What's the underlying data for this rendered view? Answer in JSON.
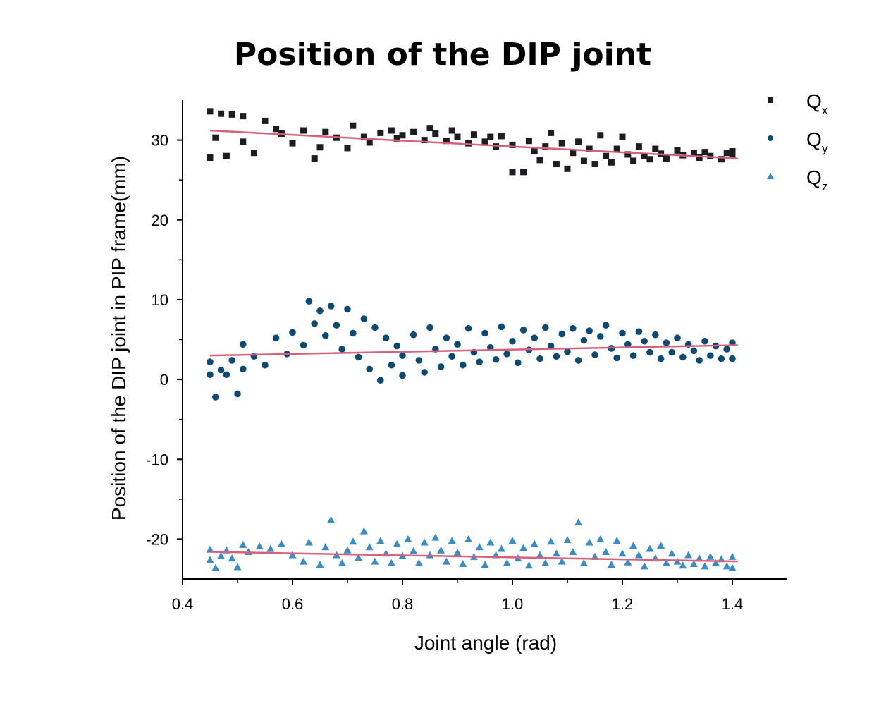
{
  "chart_data": {
    "type": "scatter",
    "title": "Position of the DIP joint",
    "xlabel": "Joint angle (rad)",
    "ylabel": "Position of the DIP joint in PIP frame(mm)",
    "xlim": [
      0.4,
      1.5
    ],
    "ylim": [
      -25,
      35
    ],
    "xticks": [
      "0.4",
      "0.6",
      "0.8",
      "1.0",
      "1.2",
      "1.4"
    ],
    "yticks": [
      "-20",
      "-10",
      "0",
      "10",
      "20",
      "30"
    ],
    "legend_position": "top-right",
    "series": [
      {
        "name": "Q",
        "subscript": "x",
        "marker": "square",
        "color": "#1b1d22",
        "fit_line": {
          "x": [
            0.45,
            1.41
          ],
          "y": [
            31.2,
            27.7
          ],
          "color": "#d9607a"
        },
        "points": [
          [
            0.45,
            33.6
          ],
          [
            0.47,
            33.3
          ],
          [
            0.49,
            33.2
          ],
          [
            0.51,
            33.0
          ],
          [
            0.55,
            32.4
          ],
          [
            0.46,
            30.3
          ],
          [
            0.45,
            27.8
          ],
          [
            0.48,
            28.0
          ],
          [
            0.51,
            29.8
          ],
          [
            0.53,
            28.4
          ],
          [
            0.57,
            31.4
          ],
          [
            0.58,
            30.8
          ],
          [
            0.6,
            29.6
          ],
          [
            0.62,
            31.2
          ],
          [
            0.64,
            27.7
          ],
          [
            0.65,
            29.1
          ],
          [
            0.66,
            31.0
          ],
          [
            0.68,
            30.3
          ],
          [
            0.7,
            29.0
          ],
          [
            0.71,
            31.8
          ],
          [
            0.73,
            30.4
          ],
          [
            0.74,
            29.7
          ],
          [
            0.76,
            30.9
          ],
          [
            0.78,
            31.2
          ],
          [
            0.79,
            30.2
          ],
          [
            0.8,
            30.6
          ],
          [
            0.82,
            31.0
          ],
          [
            0.84,
            30.0
          ],
          [
            0.85,
            31.5
          ],
          [
            0.86,
            30.8
          ],
          [
            0.88,
            29.9
          ],
          [
            0.89,
            31.2
          ],
          [
            0.9,
            30.4
          ],
          [
            0.92,
            29.6
          ],
          [
            0.93,
            30.7
          ],
          [
            0.95,
            29.8
          ],
          [
            0.96,
            30.4
          ],
          [
            0.97,
            29.2
          ],
          [
            0.98,
            30.5
          ],
          [
            1.0,
            29.4
          ],
          [
            1.0,
            26.0
          ],
          [
            1.02,
            26.0
          ],
          [
            1.03,
            29.9
          ],
          [
            1.04,
            28.6
          ],
          [
            1.05,
            27.5
          ],
          [
            1.06,
            29.2
          ],
          [
            1.07,
            30.9
          ],
          [
            1.08,
            27.0
          ],
          [
            1.09,
            29.6
          ],
          [
            1.1,
            26.4
          ],
          [
            1.11,
            28.4
          ],
          [
            1.12,
            29.8
          ],
          [
            1.13,
            27.4
          ],
          [
            1.14,
            28.9
          ],
          [
            1.15,
            27.0
          ],
          [
            1.16,
            30.6
          ],
          [
            1.17,
            28.0
          ],
          [
            1.18,
            27.2
          ],
          [
            1.19,
            28.9
          ],
          [
            1.2,
            30.4
          ],
          [
            1.21,
            28.2
          ],
          [
            1.22,
            27.4
          ],
          [
            1.23,
            29.2
          ],
          [
            1.24,
            28.0
          ],
          [
            1.25,
            27.6
          ],
          [
            1.26,
            28.9
          ],
          [
            1.27,
            28.3
          ],
          [
            1.28,
            27.7
          ],
          [
            1.3,
            28.7
          ],
          [
            1.31,
            28.1
          ],
          [
            1.33,
            28.4
          ],
          [
            1.34,
            27.8
          ],
          [
            1.35,
            28.5
          ],
          [
            1.36,
            28.0
          ],
          [
            1.38,
            27.6
          ],
          [
            1.39,
            28.4
          ],
          [
            1.4,
            28.0
          ],
          [
            1.4,
            28.6
          ]
        ]
      },
      {
        "name": "Q",
        "subscript": "y",
        "marker": "circle",
        "color": "#0c4a73",
        "fit_line": {
          "x": [
            0.45,
            1.41
          ],
          "y": [
            3.0,
            4.3
          ],
          "color": "#d9607a"
        },
        "points": [
          [
            0.45,
            2.2
          ],
          [
            0.45,
            0.6
          ],
          [
            0.46,
            -2.2
          ],
          [
            0.47,
            1.2
          ],
          [
            0.48,
            0.6
          ],
          [
            0.49,
            2.4
          ],
          [
            0.5,
            -1.8
          ],
          [
            0.51,
            4.4
          ],
          [
            0.51,
            1.3
          ],
          [
            0.53,
            2.9
          ],
          [
            0.55,
            1.8
          ],
          [
            0.57,
            5.2
          ],
          [
            0.59,
            3.2
          ],
          [
            0.6,
            5.9
          ],
          [
            0.62,
            4.3
          ],
          [
            0.63,
            9.8
          ],
          [
            0.64,
            7.0
          ],
          [
            0.65,
            8.6
          ],
          [
            0.66,
            5.5
          ],
          [
            0.67,
            9.2
          ],
          [
            0.68,
            6.8
          ],
          [
            0.69,
            3.8
          ],
          [
            0.7,
            8.8
          ],
          [
            0.71,
            5.8
          ],
          [
            0.72,
            2.8
          ],
          [
            0.73,
            7.6
          ],
          [
            0.74,
            1.3
          ],
          [
            0.75,
            6.5
          ],
          [
            0.76,
            -0.1
          ],
          [
            0.77,
            5.2
          ],
          [
            0.78,
            1.8
          ],
          [
            0.79,
            4.2
          ],
          [
            0.8,
            3.0
          ],
          [
            0.8,
            0.5
          ],
          [
            0.82,
            5.6
          ],
          [
            0.83,
            2.4
          ],
          [
            0.84,
            0.9
          ],
          [
            0.85,
            6.5
          ],
          [
            0.86,
            3.8
          ],
          [
            0.87,
            1.6
          ],
          [
            0.88,
            5.2
          ],
          [
            0.89,
            2.9
          ],
          [
            0.9,
            4.4
          ],
          [
            0.91,
            1.8
          ],
          [
            0.92,
            6.4
          ],
          [
            0.93,
            3.4
          ],
          [
            0.94,
            2.2
          ],
          [
            0.95,
            5.8
          ],
          [
            0.96,
            4.0
          ],
          [
            0.97,
            2.5
          ],
          [
            0.98,
            6.6
          ],
          [
            0.99,
            3.2
          ],
          [
            1.0,
            4.8
          ],
          [
            1.01,
            2.1
          ],
          [
            1.02,
            6.2
          ],
          [
            1.03,
            3.7
          ],
          [
            1.04,
            5.2
          ],
          [
            1.05,
            2.6
          ],
          [
            1.06,
            6.5
          ],
          [
            1.07,
            4.2
          ],
          [
            1.08,
            2.9
          ],
          [
            1.09,
            5.7
          ],
          [
            1.1,
            3.5
          ],
          [
            1.11,
            6.4
          ],
          [
            1.12,
            2.4
          ],
          [
            1.13,
            4.9
          ],
          [
            1.14,
            6.1
          ],
          [
            1.15,
            3.1
          ],
          [
            1.16,
            5.4
          ],
          [
            1.17,
            6.8
          ],
          [
            1.18,
            3.9
          ],
          [
            1.19,
            2.7
          ],
          [
            1.2,
            5.8
          ],
          [
            1.21,
            4.4
          ],
          [
            1.22,
            3.0
          ],
          [
            1.23,
            6.0
          ],
          [
            1.24,
            4.8
          ],
          [
            1.25,
            3.4
          ],
          [
            1.26,
            5.6
          ],
          [
            1.27,
            2.6
          ],
          [
            1.28,
            4.6
          ],
          [
            1.29,
            3.4
          ],
          [
            1.3,
            5.2
          ],
          [
            1.31,
            2.8
          ],
          [
            1.32,
            4.4
          ],
          [
            1.33,
            3.6
          ],
          [
            1.34,
            2.4
          ],
          [
            1.35,
            4.8
          ],
          [
            1.36,
            3.0
          ],
          [
            1.37,
            4.2
          ],
          [
            1.38,
            2.6
          ],
          [
            1.39,
            3.8
          ],
          [
            1.4,
            4.6
          ],
          [
            1.4,
            2.6
          ]
        ]
      },
      {
        "name": "Q",
        "subscript": "z",
        "marker": "triangle",
        "color": "#3a8cc6",
        "fit_line": {
          "x": [
            0.45,
            1.41
          ],
          "y": [
            -21.6,
            -22.8
          ],
          "color": "#d9607a"
        },
        "points": [
          [
            0.45,
            -21.3
          ],
          [
            0.45,
            -22.6
          ],
          [
            0.46,
            -23.6
          ],
          [
            0.47,
            -22.1
          ],
          [
            0.48,
            -21.4
          ],
          [
            0.49,
            -22.4
          ],
          [
            0.5,
            -23.5
          ],
          [
            0.51,
            -20.7
          ],
          [
            0.52,
            -21.6
          ],
          [
            0.54,
            -20.9
          ],
          [
            0.56,
            -21.2
          ],
          [
            0.58,
            -20.6
          ],
          [
            0.6,
            -22.0
          ],
          [
            0.62,
            -22.8
          ],
          [
            0.63,
            -20.4
          ],
          [
            0.65,
            -23.2
          ],
          [
            0.66,
            -21.0
          ],
          [
            0.67,
            -17.6
          ],
          [
            0.68,
            -22.0
          ],
          [
            0.69,
            -23.0
          ],
          [
            0.7,
            -21.4
          ],
          [
            0.71,
            -20.3
          ],
          [
            0.72,
            -22.3
          ],
          [
            0.73,
            -19.0
          ],
          [
            0.74,
            -21.0
          ],
          [
            0.75,
            -22.8
          ],
          [
            0.76,
            -20.2
          ],
          [
            0.77,
            -21.8
          ],
          [
            0.78,
            -23.0
          ],
          [
            0.79,
            -20.6
          ],
          [
            0.8,
            -22.1
          ],
          [
            0.81,
            -20.0
          ],
          [
            0.82,
            -21.5
          ],
          [
            0.83,
            -23.0
          ],
          [
            0.84,
            -20.4
          ],
          [
            0.85,
            -22.0
          ],
          [
            0.86,
            -19.8
          ],
          [
            0.87,
            -21.4
          ],
          [
            0.88,
            -22.8
          ],
          [
            0.89,
            -20.2
          ],
          [
            0.9,
            -21.7
          ],
          [
            0.91,
            -23.1
          ],
          [
            0.92,
            -20.0
          ],
          [
            0.93,
            -22.2
          ],
          [
            0.94,
            -21.0
          ],
          [
            0.95,
            -23.2
          ],
          [
            0.96,
            -20.4
          ],
          [
            0.97,
            -22.0
          ],
          [
            0.98,
            -21.2
          ],
          [
            0.99,
            -23.0
          ],
          [
            1.0,
            -20.2
          ],
          [
            1.01,
            -22.4
          ],
          [
            1.02,
            -21.1
          ],
          [
            1.03,
            -23.3
          ],
          [
            1.04,
            -20.6
          ],
          [
            1.05,
            -22.0
          ],
          [
            1.06,
            -23.0
          ],
          [
            1.07,
            -20.3
          ],
          [
            1.08,
            -21.8
          ],
          [
            1.09,
            -22.8
          ],
          [
            1.1,
            -20.1
          ],
          [
            1.11,
            -21.6
          ],
          [
            1.12,
            -17.9
          ],
          [
            1.13,
            -23.0
          ],
          [
            1.14,
            -20.4
          ],
          [
            1.15,
            -22.2
          ],
          [
            1.16,
            -20.0
          ],
          [
            1.17,
            -21.6
          ],
          [
            1.18,
            -23.2
          ],
          [
            1.19,
            -20.2
          ],
          [
            1.2,
            -21.8
          ],
          [
            1.21,
            -22.9
          ],
          [
            1.22,
            -20.8
          ],
          [
            1.23,
            -22.0
          ],
          [
            1.24,
            -23.4
          ],
          [
            1.25,
            -21.2
          ],
          [
            1.26,
            -22.4
          ],
          [
            1.27,
            -20.8
          ],
          [
            1.28,
            -23.0
          ],
          [
            1.29,
            -21.8
          ],
          [
            1.3,
            -22.8
          ],
          [
            1.31,
            -23.3
          ],
          [
            1.32,
            -22.0
          ],
          [
            1.33,
            -23.1
          ],
          [
            1.34,
            -22.4
          ],
          [
            1.35,
            -23.4
          ],
          [
            1.36,
            -22.2
          ],
          [
            1.37,
            -23.0
          ],
          [
            1.38,
            -22.5
          ],
          [
            1.39,
            -23.4
          ],
          [
            1.4,
            -22.2
          ],
          [
            1.4,
            -23.6
          ]
        ]
      }
    ]
  }
}
